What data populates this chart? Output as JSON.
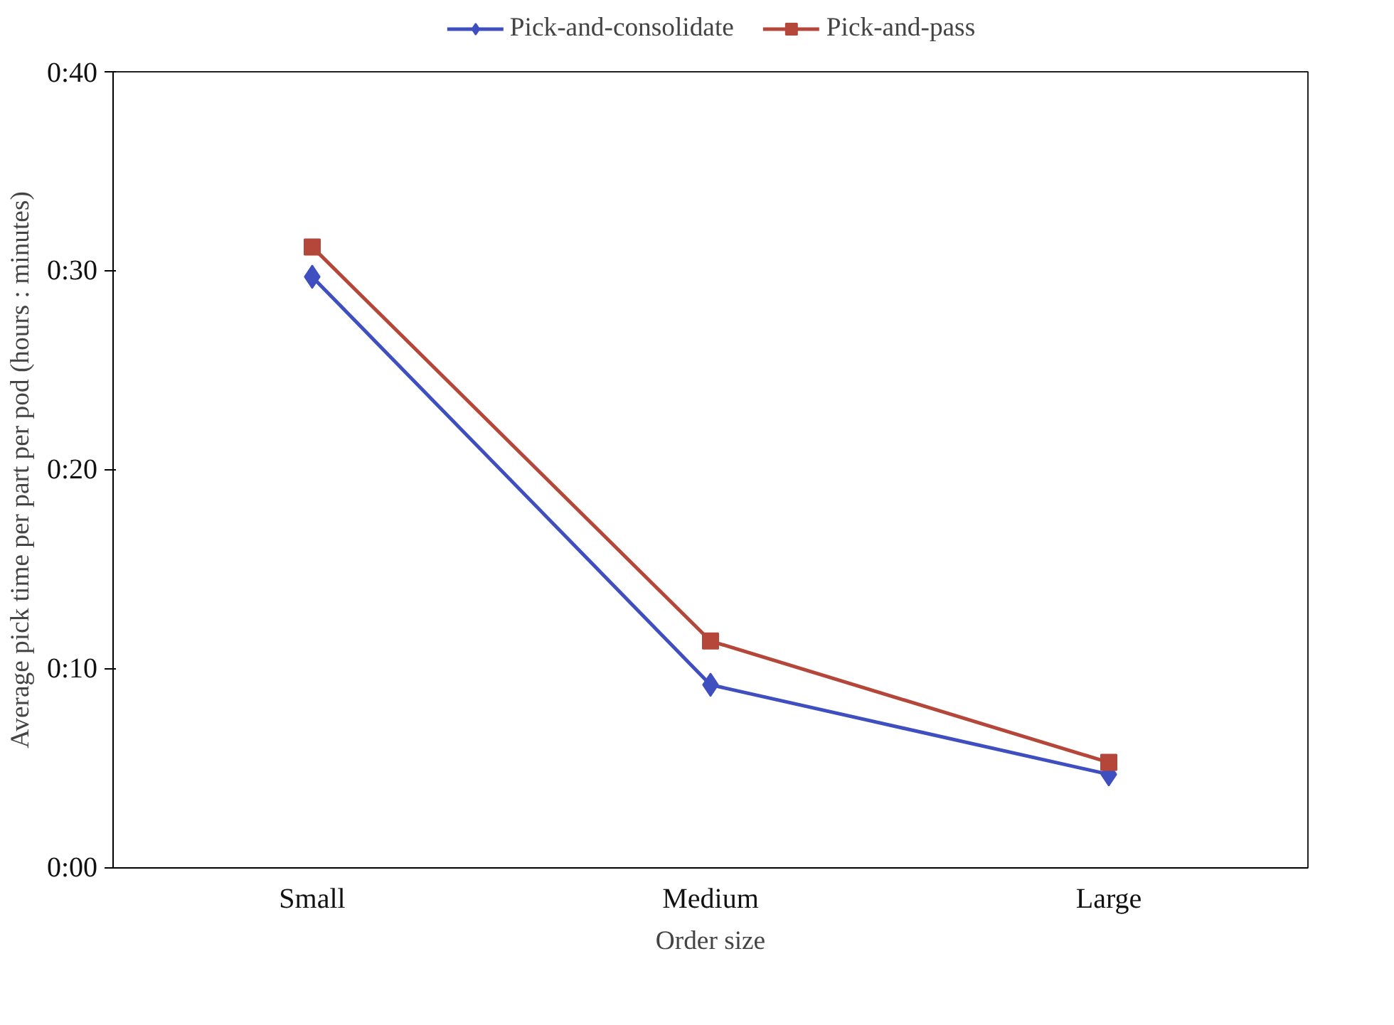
{
  "chart_data": {
    "type": "line",
    "xlabel": "Order size",
    "ylabel": "Average pick time per part per pod (hours : minutes)",
    "categories": [
      "Small",
      "Medium",
      "Large"
    ],
    "series": [
      {
        "name": "Pick-and-consolidate",
        "color": "#3f4fc0",
        "marker": "diamond",
        "values": [
          29.7,
          9.2,
          4.7
        ]
      },
      {
        "name": "Pick-and-pass",
        "color": "#b5473a",
        "marker": "square",
        "values": [
          31.2,
          11.4,
          5.3
        ]
      }
    ],
    "ylim": [
      0,
      40
    ],
    "yticks": [
      {
        "value": 0,
        "label": "0:00"
      },
      {
        "value": 10,
        "label": "0:10"
      },
      {
        "value": 20,
        "label": "0:20"
      },
      {
        "value": 30,
        "label": "0:30"
      },
      {
        "value": 40,
        "label": "0:40"
      }
    ],
    "grid": false,
    "legend": "top",
    "line_style": "solid"
  }
}
